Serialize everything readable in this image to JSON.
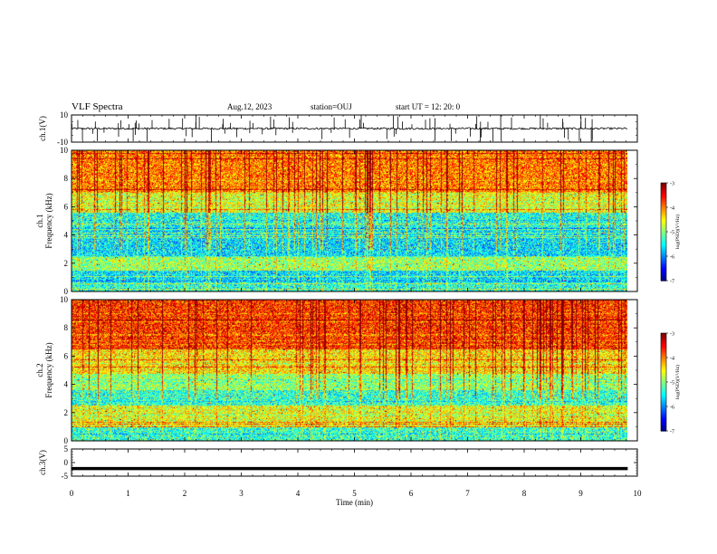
{
  "header": {
    "title": "VLF Spectra",
    "date": "Aug.12, 2023",
    "station": "station=OUJ",
    "start": "start  UT =   12: 20: 0"
  },
  "chart_data": [
    {
      "type": "line",
      "panel": "ch1-waveform",
      "ylabel": "ch.1(V)",
      "ylim": [
        -10,
        10
      ],
      "yticks": [
        "10",
        "-10"
      ],
      "xlim": [
        0,
        10
      ],
      "baseline_v": 0,
      "noise_v": 0.7,
      "spikes_per_min": 9
    },
    {
      "type": "heatmap",
      "panel": "ch1-spectrogram",
      "ylabel": "ch.1\nFrequency (kHz)",
      "ylim": [
        0,
        10
      ],
      "yticks": [
        "0",
        "2",
        "4",
        "6",
        "8",
        "10"
      ],
      "xlim": [
        0,
        9.83
      ],
      "zlim": [
        -7,
        -3
      ],
      "colorbar_label": "log(PSD)(V²/Hz)",
      "colorbar_ticks": [
        "-3",
        "-4",
        "-5",
        "-6",
        "-7"
      ],
      "bands": [
        {
          "f": [
            0.0,
            0.7
          ],
          "level": -5.4
        },
        {
          "f": [
            0.7,
            1.5
          ],
          "level": -5.6
        },
        {
          "f": [
            1.5,
            2.5
          ],
          "level": -4.9
        },
        {
          "f": [
            2.5,
            4.6
          ],
          "level": -5.6
        },
        {
          "f": [
            4.6,
            5.6
          ],
          "level": -5.4
        },
        {
          "f": [
            5.6,
            7.0
          ],
          "level": -4.6
        },
        {
          "f": [
            7.0,
            10.0
          ],
          "level": -4.0
        }
      ]
    },
    {
      "type": "heatmap",
      "panel": "ch2-spectrogram",
      "ylabel": "ch.2\nFrequency (kHz)",
      "ylim": [
        0,
        10
      ],
      "yticks": [
        "0",
        "2",
        "4",
        "6",
        "8",
        "10"
      ],
      "xlim": [
        0,
        9.83
      ],
      "zlim": [
        -7,
        -3
      ],
      "colorbar_label": "log(PSD)(V²/Hz)",
      "colorbar_ticks": [
        "-3",
        "-4",
        "-5",
        "-6",
        "-7"
      ],
      "bands": [
        {
          "f": [
            0.0,
            1.0
          ],
          "level": -5.3
        },
        {
          "f": [
            1.0,
            2.5
          ],
          "level": -4.6
        },
        {
          "f": [
            2.5,
            3.6
          ],
          "level": -5.3
        },
        {
          "f": [
            3.6,
            4.8
          ],
          "level": -4.9
        },
        {
          "f": [
            4.8,
            6.5
          ],
          "level": -4.4
        },
        {
          "f": [
            6.5,
            10.0
          ],
          "level": -3.7
        }
      ]
    },
    {
      "type": "line",
      "panel": "ch3-waveform",
      "ylabel": "ch.3(V)",
      "ylim": [
        -5,
        5
      ],
      "yticks": [
        "5",
        "0",
        "-5"
      ],
      "xlim": [
        0,
        9.83
      ],
      "value_v": -2.2,
      "xlabel": "Time  (min)",
      "xticks": [
        "0",
        "1",
        "2",
        "3",
        "4",
        "5",
        "6",
        "7",
        "8",
        "9",
        "10"
      ]
    }
  ]
}
